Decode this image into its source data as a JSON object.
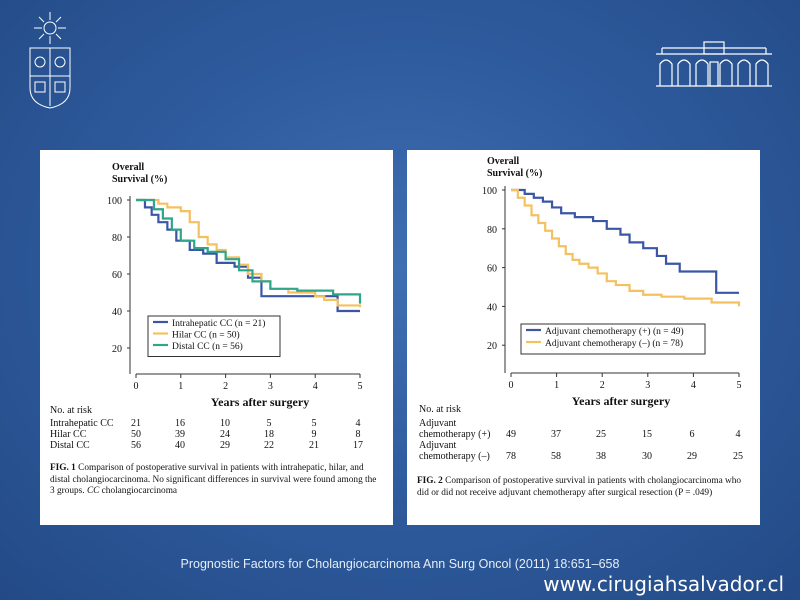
{
  "slide": {
    "footer": "Prognostic Factors for Cholangiocarcinoma Ann Surg Oncol (2011) 18:651–658",
    "url": "www.cirugiahsalvador.cl"
  },
  "colors": {
    "blue": "#3a56a5",
    "yellow": "#f5c060",
    "green": "#2fa58a"
  },
  "fig1": {
    "caption_label": "FIG. 1",
    "caption_text": "Comparison of postoperative survival in patients with intrahepatic, hilar, and distal cholangiocarcinoma. No significant differences in survival were found among the 3 groups.",
    "caption_abbr": "CC",
    "caption_abbr_def": "cholangiocarcinoma",
    "risk_title": "No. at risk",
    "risk_rows": [
      {
        "label": "Intrahepatic CC",
        "values": [
          "21",
          "16",
          "10",
          "5",
          "5",
          "4"
        ]
      },
      {
        "label": "Hilar CC",
        "values": [
          "50",
          "39",
          "24",
          "18",
          "9",
          "8"
        ]
      },
      {
        "label": "Distal CC",
        "values": [
          "56",
          "40",
          "29",
          "22",
          "21",
          "17"
        ]
      }
    ]
  },
  "fig2": {
    "caption_label": "FIG. 2",
    "caption_text": "Comparison of postoperative survival in patients with cholangiocarcinoma who did or did not receive adjuvant chemotherapy after surgical resection",
    "caption_p": "(P = .049)",
    "risk_title": "No. at risk",
    "risk_rows": [
      {
        "label1": "Adjuvant",
        "label2": "chemotherapy (+)",
        "values": [
          "49",
          "37",
          "25",
          "15",
          "6",
          "4"
        ]
      },
      {
        "label1": "Adjuvant",
        "label2": "chemotherapy (–)",
        "values": [
          "78",
          "58",
          "38",
          "30",
          "29",
          "25"
        ]
      }
    ]
  },
  "chart_data": [
    {
      "type": "line",
      "ylabel": "Overall Survival (%)",
      "xlabel": "Years after surgery",
      "xlim": [
        0,
        5
      ],
      "ylim": [
        0,
        100
      ],
      "xticks": [
        "0",
        "1",
        "2",
        "3",
        "4",
        "5"
      ],
      "yticks": [
        "20",
        "40",
        "60",
        "80",
        "100"
      ],
      "legend_position": "bottom-left",
      "series": [
        {
          "name": "Intrahepatic CC (n = 21)",
          "color": "#3a56a5",
          "x": [
            0,
            0.2,
            0.35,
            0.5,
            0.7,
            0.9,
            1.2,
            1.5,
            1.8,
            2.2,
            2.5,
            2.8,
            3.5,
            4.5,
            5.0
          ],
          "y": [
            100,
            96,
            92,
            88,
            84,
            78,
            73,
            71,
            66,
            64,
            58,
            48,
            48,
            40,
            40
          ]
        },
        {
          "name": "Hilar CC (n = 50)",
          "color": "#f5c060",
          "x": [
            0,
            0.5,
            0.7,
            1.0,
            1.2,
            1.4,
            1.6,
            1.8,
            2.0,
            2.3,
            2.5,
            2.8,
            3.0,
            3.4,
            4.0,
            4.2,
            4.5,
            5.0
          ],
          "y": [
            100,
            98,
            96,
            94,
            88,
            80,
            76,
            73,
            69,
            65,
            60,
            56,
            52,
            50,
            48,
            46,
            43,
            42
          ]
        },
        {
          "name": "Distal CC (n = 56)",
          "color": "#2fa58a",
          "x": [
            0,
            0.4,
            0.6,
            0.8,
            1.0,
            1.3,
            1.6,
            2.0,
            2.3,
            2.6,
            3.0,
            3.6,
            4.4,
            5.0
          ],
          "y": [
            100,
            95,
            90,
            84,
            78,
            74,
            72,
            68,
            62,
            56,
            52,
            51,
            49,
            44
          ]
        }
      ]
    },
    {
      "type": "line",
      "ylabel": "Overall Survival (%)",
      "xlabel": "Years after surgery",
      "xlim": [
        0,
        5
      ],
      "ylim": [
        0,
        100
      ],
      "xticks": [
        "0",
        "1",
        "2",
        "3",
        "4",
        "5"
      ],
      "yticks": [
        "20",
        "40",
        "60",
        "80",
        "100"
      ],
      "legend_position": "bottom-center",
      "series": [
        {
          "name": "Adjuvant chemotherapy (+) (n = 49)",
          "color": "#3a56a5",
          "x": [
            0,
            0.3,
            0.5,
            0.7,
            0.9,
            1.1,
            1.4,
            1.8,
            2.1,
            2.4,
            2.6,
            2.9,
            3.2,
            3.4,
            3.7,
            4.1,
            4.4,
            4.5,
            5.0
          ],
          "y": [
            100,
            98,
            96,
            94,
            91,
            88,
            86,
            84,
            80,
            77,
            73,
            70,
            66,
            62,
            58,
            58,
            58,
            47,
            47
          ]
        },
        {
          "name": "Adjuvant chemotherapy (–) (n = 78)",
          "color": "#f5c060",
          "x": [
            0,
            0.15,
            0.3,
            0.45,
            0.6,
            0.75,
            0.9,
            1.05,
            1.2,
            1.35,
            1.5,
            1.7,
            1.9,
            2.1,
            2.3,
            2.6,
            2.9,
            3.3,
            3.8,
            4.4,
            5.0
          ],
          "y": [
            100,
            96,
            92,
            87,
            83,
            79,
            75,
            71,
            67,
            64,
            62,
            60,
            57,
            53,
            51,
            48,
            46,
            45,
            44,
            42,
            40
          ]
        }
      ]
    }
  ]
}
